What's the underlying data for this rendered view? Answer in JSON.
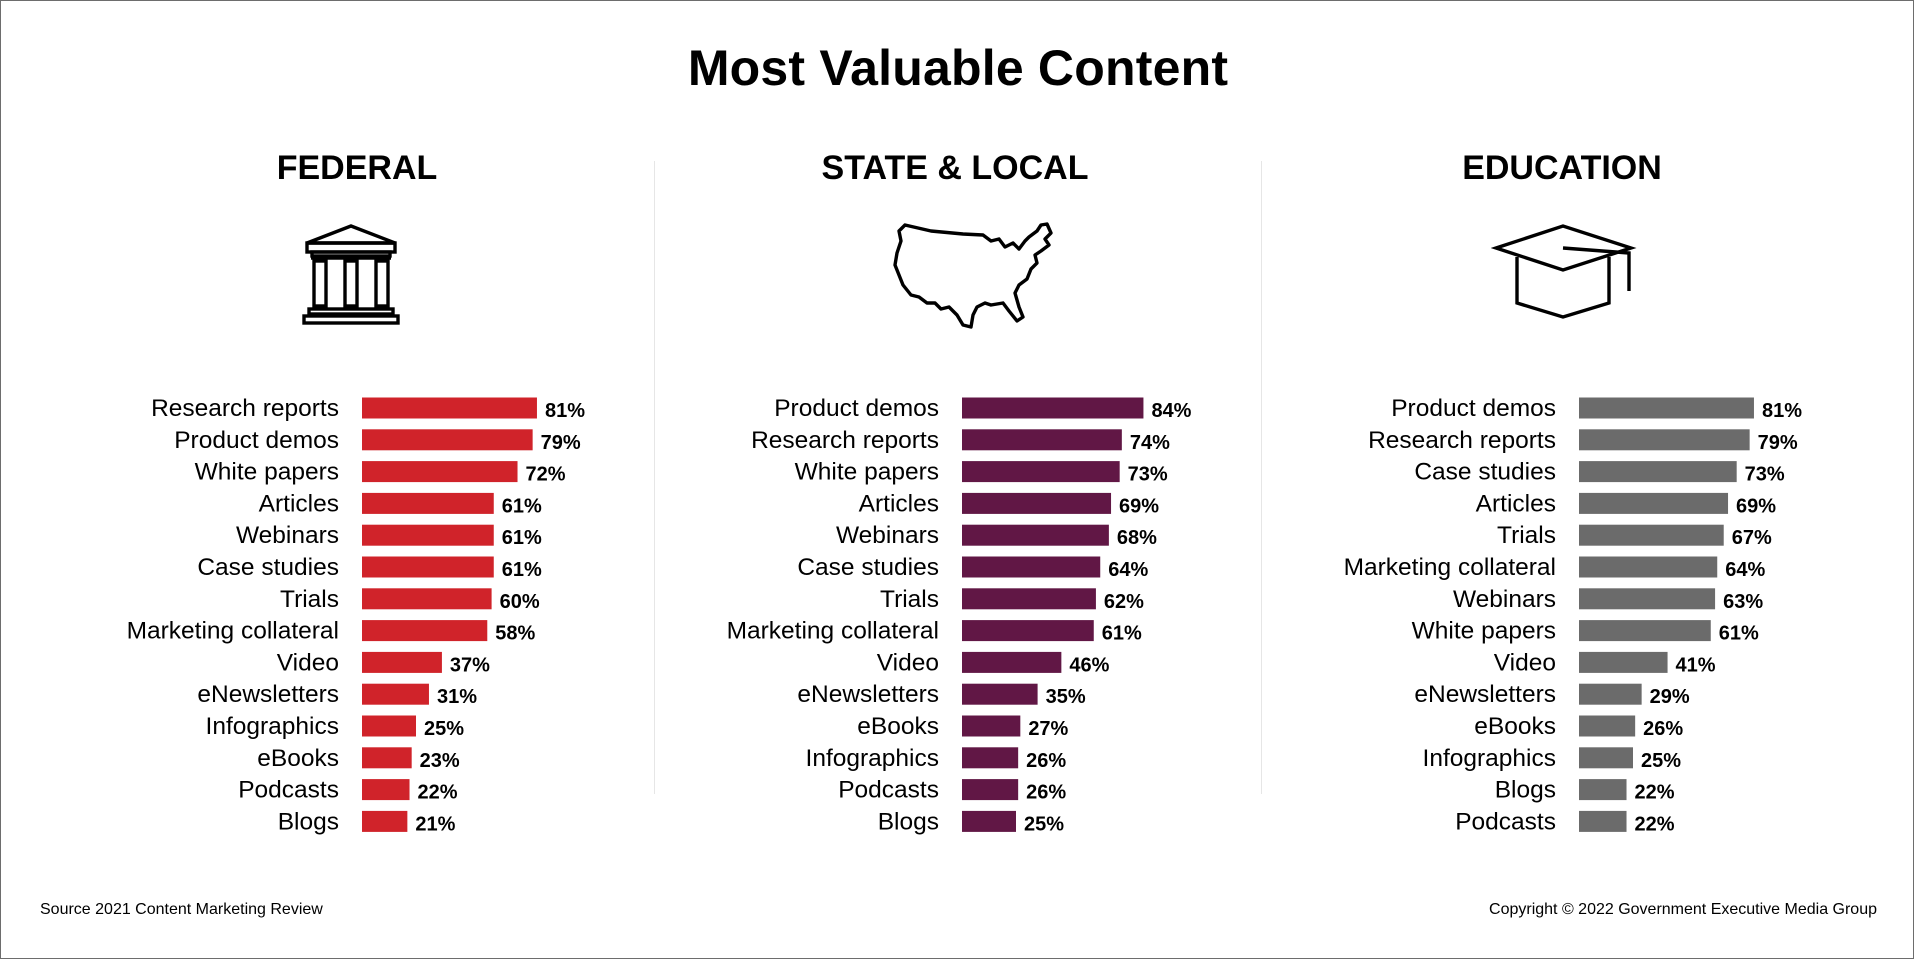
{
  "title": "Most Valuable Content",
  "footer": {
    "source": "Source 2021 Content Marketing Review",
    "copyright": "Copyright © 2022 Government Executive Media Group"
  },
  "icons": {
    "federal": "government-building-icon",
    "state_local": "us-map-icon",
    "education": "graduation-cap-icon"
  },
  "colors": {
    "federal": "#d0232a",
    "state_local": "#611745",
    "education": "#6b6b6b"
  },
  "chart_data": [
    {
      "type": "bar",
      "orientation": "horizontal",
      "title": "FEDERAL",
      "categories": [
        "Research reports",
        "Product demos",
        "White papers",
        "Articles",
        "Webinars",
        "Case studies",
        "Trials",
        "Marketing collateral",
        "Video",
        "eNewsletters",
        "Infographics",
        "eBooks",
        "Podcasts",
        "Blogs"
      ],
      "values": [
        81,
        79,
        72,
        61,
        61,
        61,
        60,
        58,
        37,
        31,
        25,
        23,
        22,
        21
      ],
      "value_labels": [
        "81%",
        "79%",
        "72%",
        "61%",
        "61%",
        "61%",
        "60%",
        "58%",
        "37%",
        "31%",
        "25%",
        "23%",
        "22%",
        "21%"
      ],
      "unit": "%",
      "color": "#d0232a",
      "grid": false,
      "legend": "none"
    },
    {
      "type": "bar",
      "orientation": "horizontal",
      "title": "STATE & LOCAL",
      "categories": [
        "Product demos",
        "Research reports",
        "White papers",
        "Articles",
        "Webinars",
        "Case studies",
        "Trials",
        "Marketing collateral",
        "Video",
        "eNewsletters",
        "eBooks",
        "Infographics",
        "Podcasts",
        "Blogs"
      ],
      "values": [
        84,
        74,
        73,
        69,
        68,
        64,
        62,
        61,
        46,
        35,
        27,
        26,
        26,
        25
      ],
      "value_labels": [
        "84%",
        "74%",
        "73%",
        "69%",
        "68%",
        "64%",
        "62%",
        "61%",
        "46%",
        "35%",
        "27%",
        "26%",
        "26%",
        "25%"
      ],
      "unit": "%",
      "color": "#611745",
      "grid": false,
      "legend": "none"
    },
    {
      "type": "bar",
      "orientation": "horizontal",
      "title": "EDUCATION",
      "categories": [
        "Product demos",
        "Research reports",
        "Case studies",
        "Articles",
        "Trials",
        "Marketing collateral",
        "Webinars",
        "White papers",
        "Video",
        "eNewsletters",
        "eBooks",
        "Infographics",
        "Blogs",
        "Podcasts"
      ],
      "values": [
        81,
        79,
        73,
        69,
        67,
        64,
        63,
        61,
        41,
        29,
        26,
        25,
        22,
        22
      ],
      "value_labels": [
        "81%",
        "79%",
        "73%",
        "69%",
        "67%",
        "64%",
        "63%",
        "61%",
        "41%",
        "29%",
        "26%",
        "25%",
        "22%",
        "22%"
      ],
      "unit": "%",
      "color": "#6b6b6b",
      "grid": false,
      "legend": "none"
    }
  ]
}
